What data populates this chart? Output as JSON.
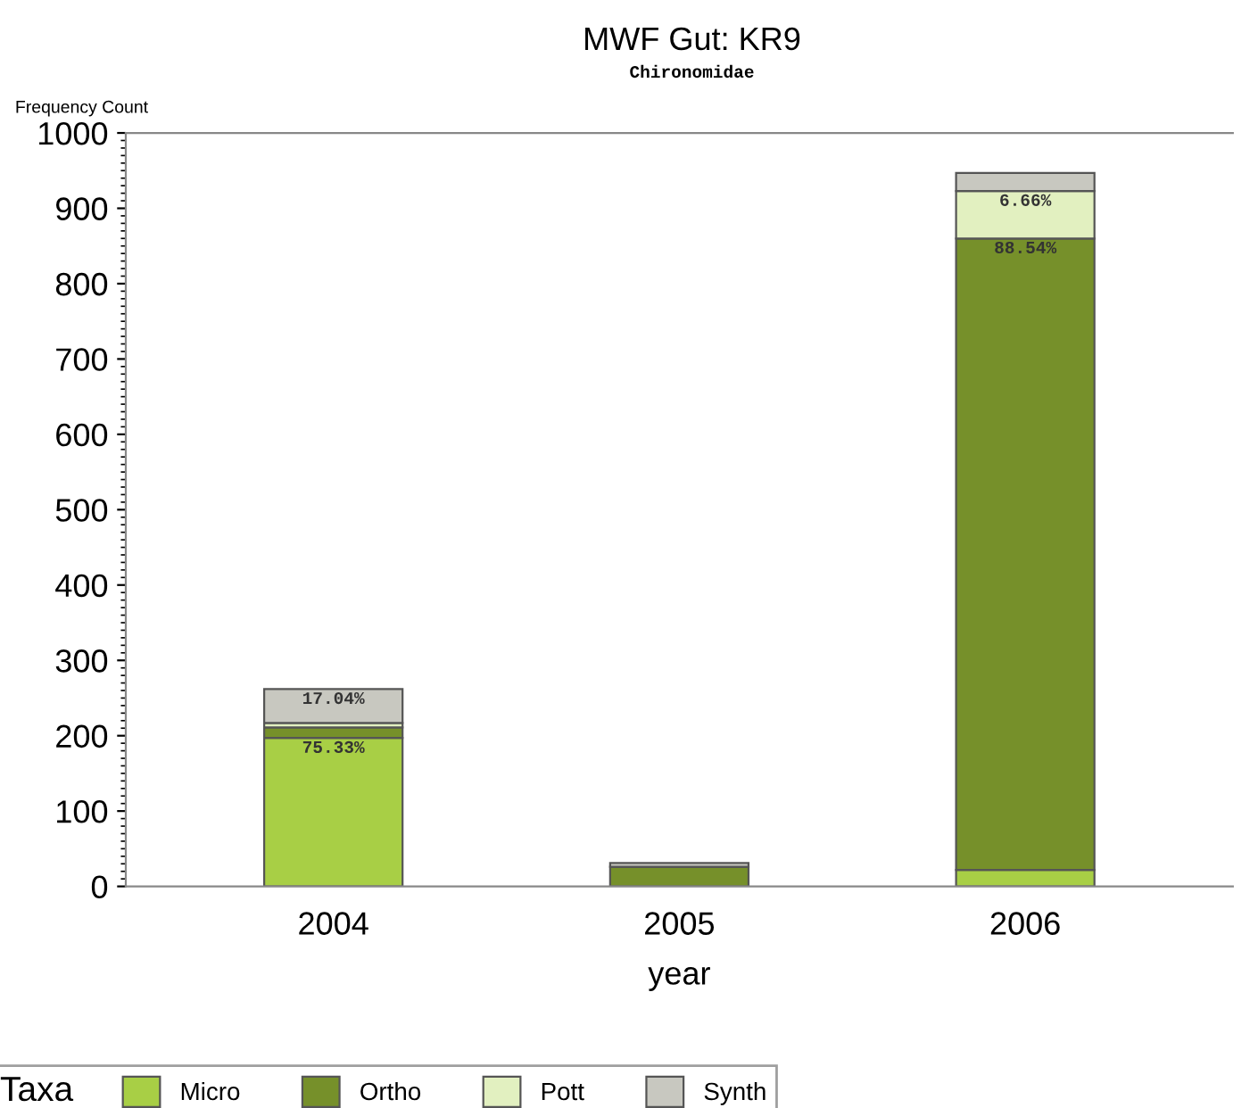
{
  "chart_data": {
    "type": "bar",
    "title": "MWF Gut: KR9",
    "subtitle": "Chironomidae",
    "xlabel": "year",
    "ylabel": "Frequency Count",
    "legend_title": "Taxa",
    "legend": "bottom",
    "stacked": true,
    "categories": [
      "2004",
      "2005",
      "2006"
    ],
    "annotations": [
      {
        "text": "75.33%",
        "x": "2004",
        "y": 197
      },
      {
        "text": "17.04%",
        "x": "2004",
        "y": 262
      },
      {
        "text": "88.54%",
        "x": "2006",
        "y": 860
      },
      {
        "text": "6.66%",
        "x": "2006",
        "y": 923
      }
    ],
    "ylim": [
      0,
      1000
    ],
    "yticks": [
      0,
      100,
      200,
      300,
      400,
      500,
      600,
      700,
      800,
      900,
      1000
    ],
    "grid": false,
    "series": [
      {
        "name": "Micro",
        "color": "#a8cf45",
        "values": [
          197,
          0,
          22
        ]
      },
      {
        "name": "Ortho",
        "color": "#76902a",
        "values": [
          14,
          26,
          838
        ]
      },
      {
        "name": "Pott",
        "color": "#e2f0c0",
        "values": [
          6,
          0,
          63
        ]
      },
      {
        "name": "Synth",
        "color": "#c8c8c0",
        "values": [
          45,
          5,
          24
        ]
      }
    ]
  }
}
